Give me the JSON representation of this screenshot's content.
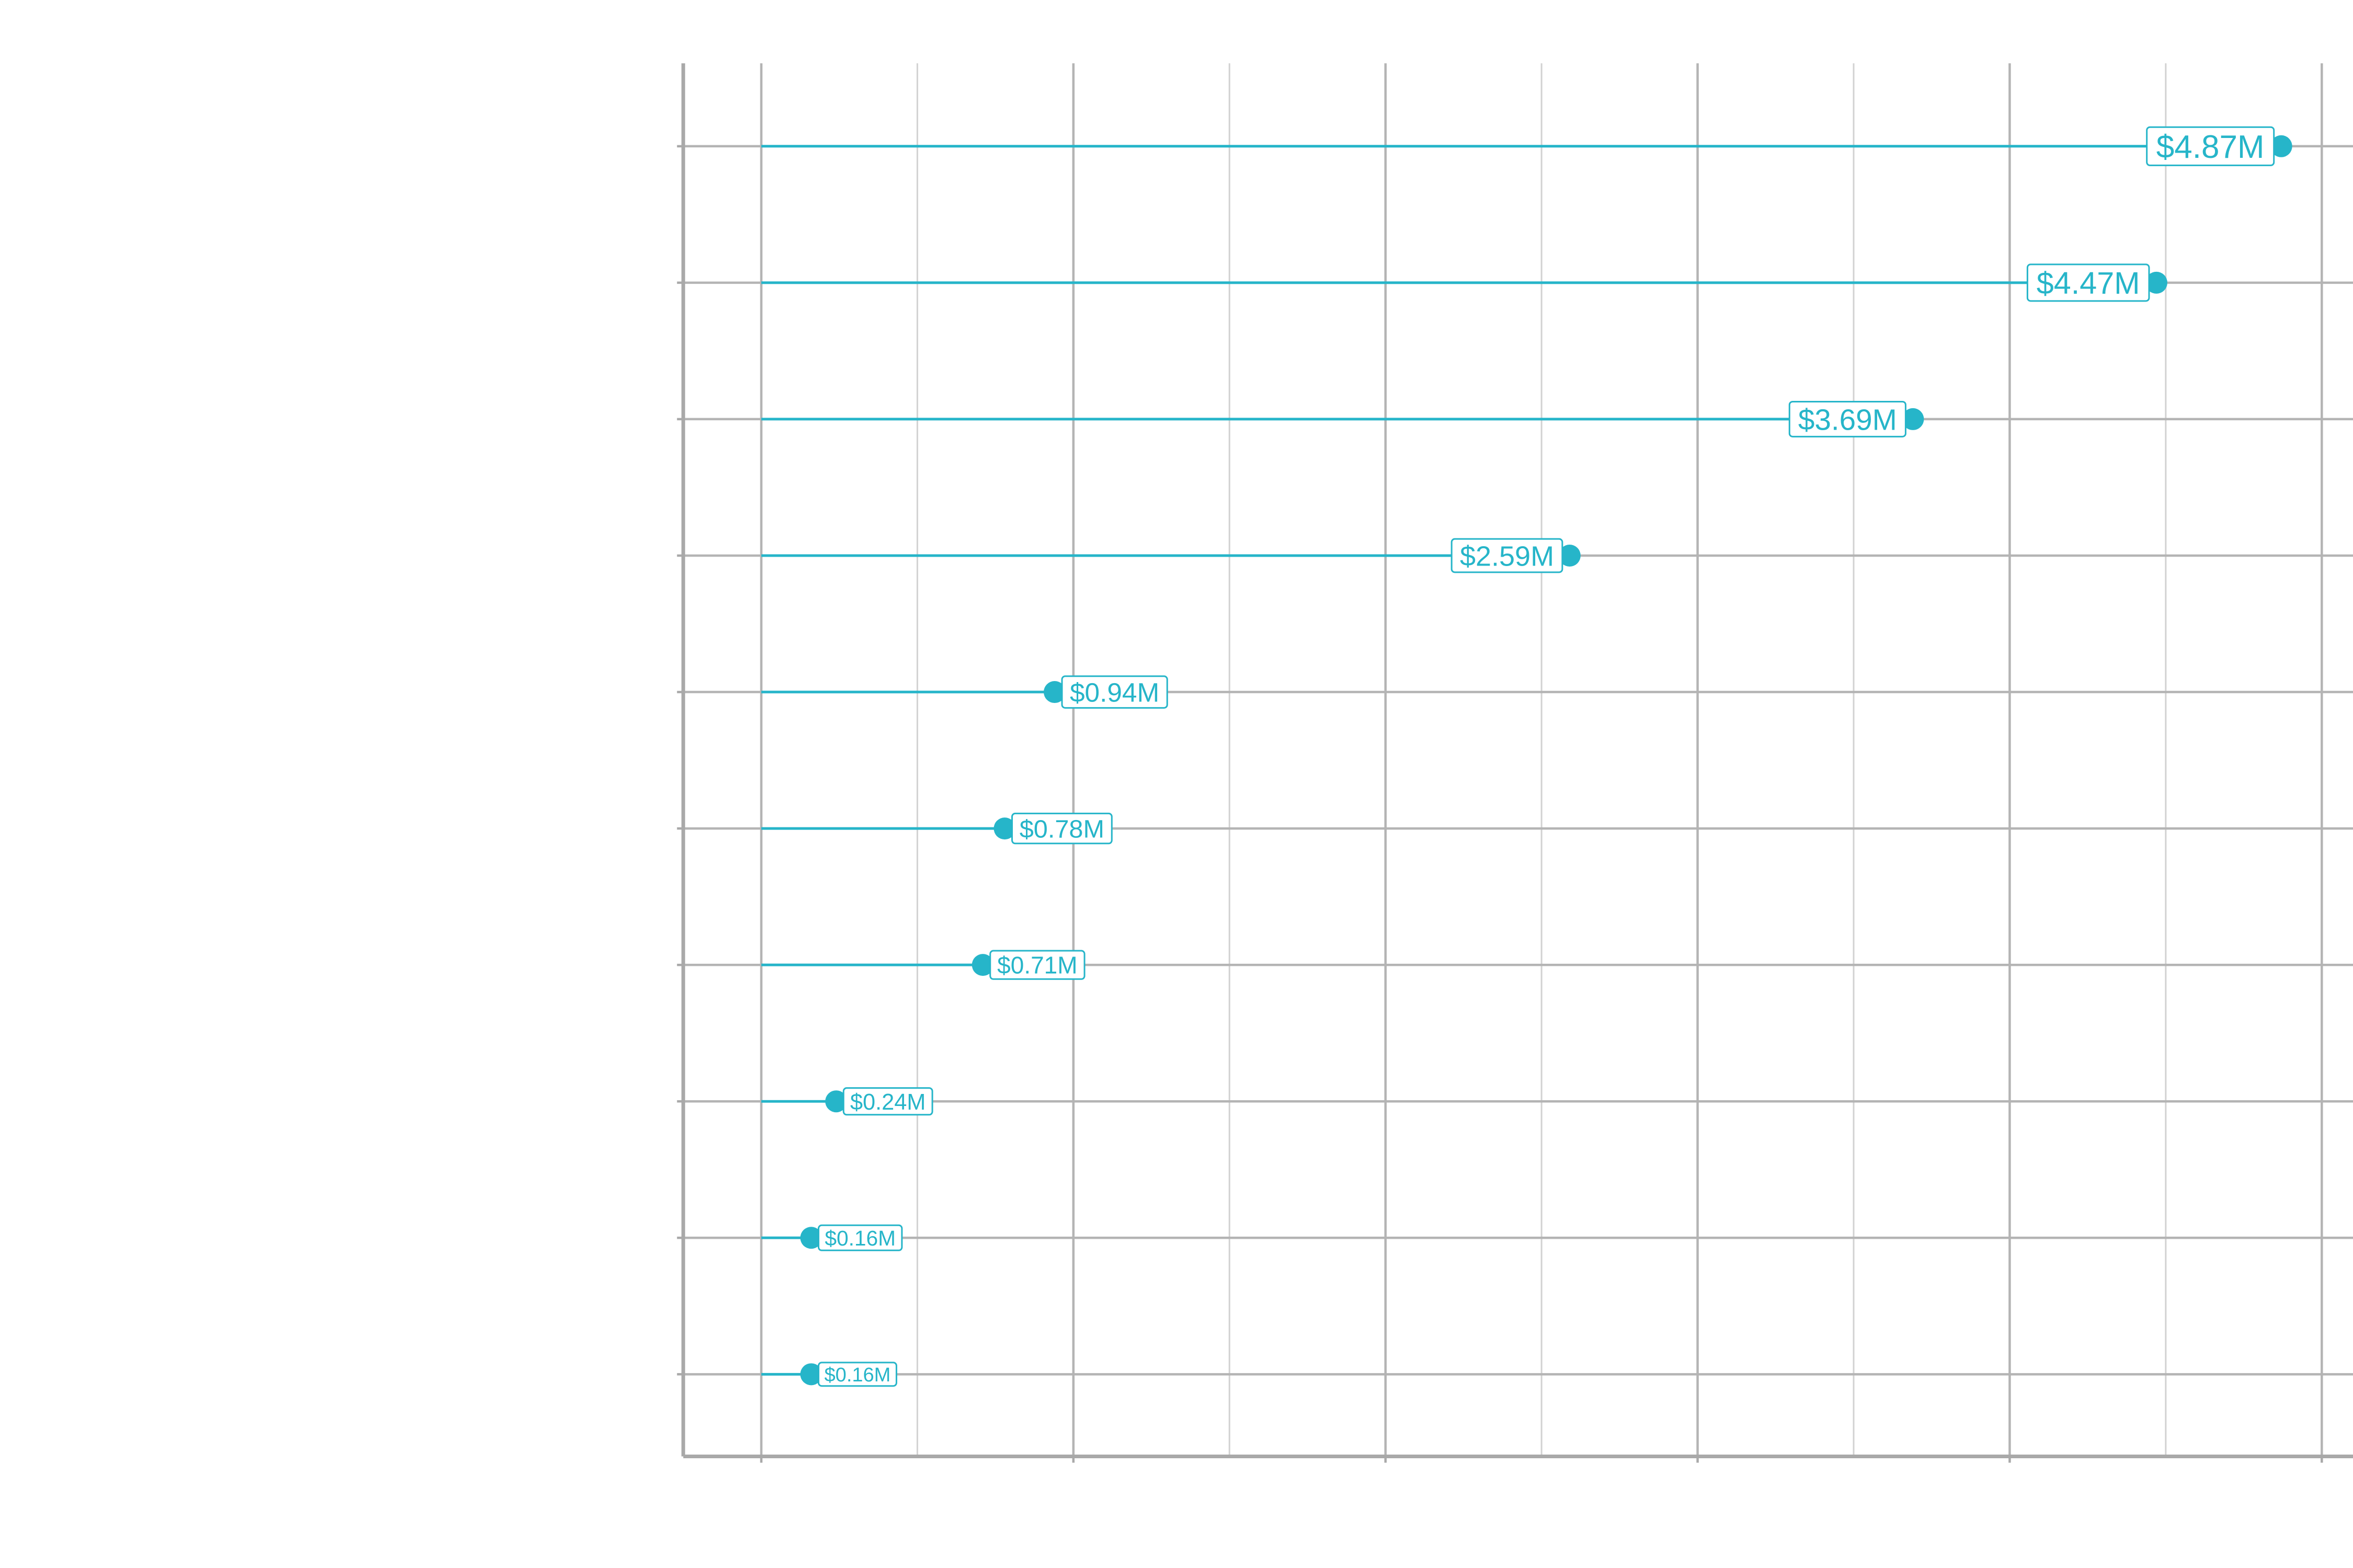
{
  "colors": {
    "accent": "#26b5c9",
    "grid_major": "#b4b4b4",
    "grid_minor": "#d2d2d2",
    "axis": "#a9a9a9",
    "label_bg": "#ffffff"
  },
  "chart_data": {
    "type": "lollipop",
    "orientation": "horizontal",
    "title": "",
    "xlabel": "",
    "ylabel": "",
    "grid": true,
    "legend": "none",
    "xlim": [
      -0.25,
      5.1
    ],
    "categories": [
      "",
      "",
      "",
      "",
      "",
      "",
      "",
      "",
      "",
      ""
    ],
    "values": [
      4.87,
      4.47,
      3.69,
      2.59,
      0.94,
      0.78,
      0.71,
      0.24,
      0.16,
      0.16
    ],
    "value_labels": [
      "$4.87M",
      "$4.47M",
      "$3.69M",
      "$2.59M",
      "$0.94M",
      "$0.78M",
      "$0.71M",
      "$0.24M",
      "$0.16M",
      "$0.16M"
    ],
    "major_ticks": [
      0,
      1,
      2,
      3,
      4,
      5
    ],
    "minor_ticks": [
      0.5,
      1.5,
      2.5,
      3.5,
      4.5
    ]
  }
}
